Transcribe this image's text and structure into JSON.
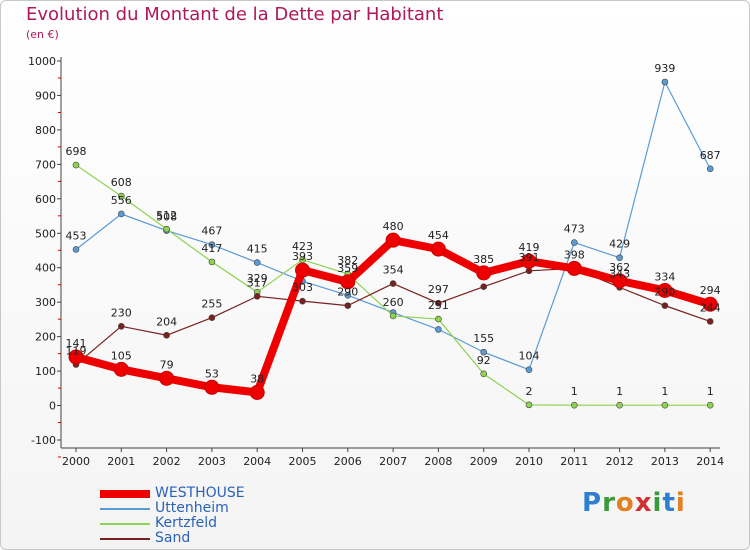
{
  "title": "Evolution du Montant de la Dette par Habitant",
  "subtitle": "(en €)",
  "logo": [
    "P",
    "r",
    "o",
    "x",
    "i",
    "t",
    "i"
  ],
  "logo_colors": [
    "#2f7fd0",
    "#3a9a3a",
    "#e08020",
    "#d03030",
    "#3a9a3a",
    "#2f7fd0",
    "#e08020"
  ],
  "chart_data": {
    "type": "line",
    "x": [
      "2000",
      "2001",
      "2002",
      "2003",
      "2004",
      "2005",
      "2006",
      "2007",
      "2008",
      "2009",
      "2010",
      "2011",
      "2012",
      "2013",
      "2014"
    ],
    "ylim": [
      -100,
      1000
    ],
    "yticks": [
      "-100",
      "0",
      "100",
      "200",
      "300",
      "400",
      "500",
      "600",
      "700",
      "800",
      "900",
      "1000"
    ],
    "grid": false,
    "legend_position": "bottom-left",
    "series": [
      {
        "name": "WESTHOUSE",
        "color": "#ee0000",
        "width": 8,
        "marker": 7,
        "values": [
          141,
          105,
          79,
          53,
          38,
          393,
          359,
          480,
          454,
          385,
          419,
          398,
          362,
          334,
          294
        ],
        "labels": [
          "141",
          "105",
          "79",
          "53",
          "38",
          "393",
          "359",
          "480",
          "454",
          "385",
          "419",
          "398",
          "362",
          "334",
          "294"
        ]
      },
      {
        "name": "Uttenheim",
        "color": "#5b9bd5",
        "width": 1.2,
        "marker": 3,
        "values": [
          453,
          556,
          508,
          467,
          415,
          361,
          320,
          270,
          221,
          155,
          104,
          473,
          429,
          939,
          687
        ],
        "labels": [
          "453",
          "556",
          "508",
          "467",
          "415",
          "",
          "",
          "",
          "",
          "155",
          "104",
          "473",
          "429",
          "939",
          "687"
        ]
      },
      {
        "name": "Kertzfeld",
        "color": "#8ed24f",
        "width": 1.2,
        "marker": 3,
        "values": [
          698,
          608,
          512,
          417,
          329,
          423,
          382,
          260,
          251,
          92,
          2,
          1,
          1,
          1,
          1
        ],
        "labels": [
          "698",
          "608",
          "512",
          "417",
          "329",
          "423",
          "382",
          "260",
          "251",
          "92",
          "2",
          "1",
          "1",
          "1",
          "1"
        ]
      },
      {
        "name": "Sand",
        "color": "#7a2020",
        "width": 1.2,
        "marker": 3,
        "values": [
          119,
          230,
          204,
          255,
          317,
          303,
          290,
          354,
          297,
          345,
          391,
          398,
          343,
          290,
          244
        ],
        "labels": [
          "119",
          "230",
          "204",
          "255",
          "317",
          "303",
          "290",
          "354",
          "297",
          "",
          "391",
          "",
          "343",
          "290",
          "244"
        ]
      }
    ]
  }
}
